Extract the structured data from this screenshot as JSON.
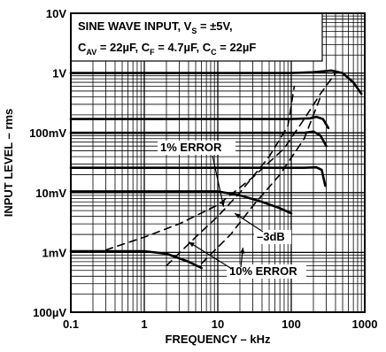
{
  "chart_data": {
    "type": "line",
    "xscale": "log",
    "yscale": "log",
    "xlim": [
      0.1,
      1000
    ],
    "ylim": [
      "100µV",
      "10V"
    ],
    "xlabel": "FREQUENCY – kHz",
    "ylabel": "INPUT LEVEL – rms",
    "x_tick_labels": [
      "0.1",
      "1",
      "10",
      "100",
      "1000"
    ],
    "y_tick_labels": [
      "10V",
      "1V",
      "100mV",
      "10mV",
      "1mV",
      "100µV"
    ],
    "legend_lines": [
      [
        "SINE WAVE INPUT, V",
        "S",
        " = ±5V,"
      ],
      [
        "C",
        "AV",
        " = 22µF, C",
        "F",
        " = 4.7µF, C",
        "C",
        " = 22µF"
      ]
    ],
    "grid": true,
    "series": [
      {
        "style": "solid",
        "x": [
          0.1,
          100,
          200,
          350,
          500,
          700,
          900
        ],
        "y": [
          1.0,
          1.0,
          1.03,
          1.1,
          1.0,
          0.7,
          0.45
        ]
      },
      {
        "style": "solid",
        "x": [
          0.1,
          100,
          180,
          220,
          270,
          320
        ],
        "y": [
          0.17,
          0.17,
          0.175,
          0.185,
          0.17,
          0.12
        ]
      },
      {
        "style": "solid",
        "x": [
          0.1,
          150,
          200,
          250,
          300
        ],
        "y": [
          0.1,
          0.1,
          0.105,
          0.09,
          0.06
        ]
      },
      {
        "style": "solid",
        "x": [
          0.1,
          150,
          220,
          260,
          290
        ],
        "y": [
          0.026,
          0.026,
          0.0265,
          0.024,
          0.013
        ]
      },
      {
        "style": "solid",
        "x": [
          0.1,
          10,
          20,
          40,
          70,
          100
        ],
        "y": [
          0.0105,
          0.0105,
          0.009,
          0.007,
          0.0055,
          0.0045
        ]
      },
      {
        "style": "solid",
        "x": [
          0.1,
          1,
          2,
          4,
          6
        ],
        "y": [
          0.00105,
          0.00105,
          0.00095,
          0.0007,
          0.00055
        ]
      },
      {
        "style": "dashed",
        "x": [
          0.3,
          1,
          3,
          10,
          30,
          80,
          150,
          250,
          400
        ],
        "y": [
          0.0011,
          0.0018,
          0.003,
          0.0062,
          0.018,
          0.055,
          0.17,
          0.45,
          1.0
        ]
      },
      {
        "style": "dashed",
        "x": [
          2,
          5,
          10,
          20,
          50,
          90,
          110
        ],
        "y": [
          0.0006,
          0.0018,
          0.004,
          0.01,
          0.04,
          0.13,
          0.6
        ]
      },
      {
        "style": "dashed",
        "x": [
          6,
          15,
          30,
          70,
          150,
          250
        ],
        "y": [
          0.00065,
          0.002,
          0.006,
          0.02,
          0.08,
          0.4
        ]
      }
    ],
    "annotations": [
      {
        "text": "1% ERROR",
        "arrow_to": [
          12,
          0.0058
        ]
      },
      {
        "text": "–3dB",
        "arrow_to": [
          17,
          0.0045
        ]
      },
      {
        "text": "10% ERROR",
        "arrow_to": [
          [
            4,
            0.0015
          ],
          [
            22,
            0.0012
          ]
        ]
      }
    ]
  }
}
